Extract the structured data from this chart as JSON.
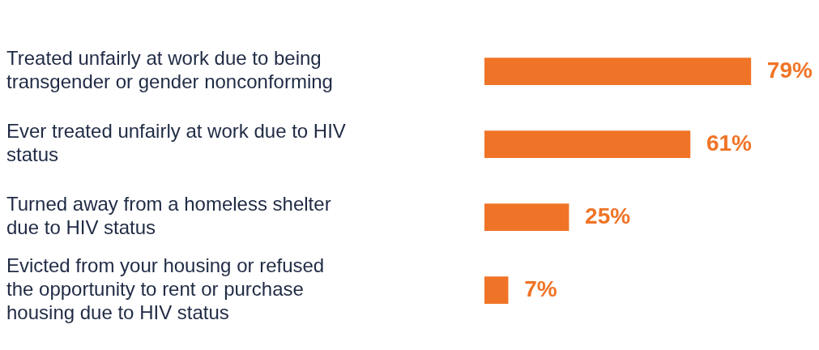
{
  "chart_data": {
    "type": "bar",
    "orientation": "horizontal",
    "categories": [
      "Treated unfairly at work due to being transgender or gender nonconforming",
      "Ever treated unfairly at work due to HIV status",
      "Turned away from a homeless shelter due to HIV status",
      "Evicted from your housing or refused the opportunity to rent or purchase housing due to HIV status"
    ],
    "values": [
      79,
      61,
      25,
      7
    ],
    "value_labels": [
      "79%",
      "61%",
      "25%",
      "7%"
    ],
    "color": "#f07427",
    "tick_labels": "y"
  }
}
